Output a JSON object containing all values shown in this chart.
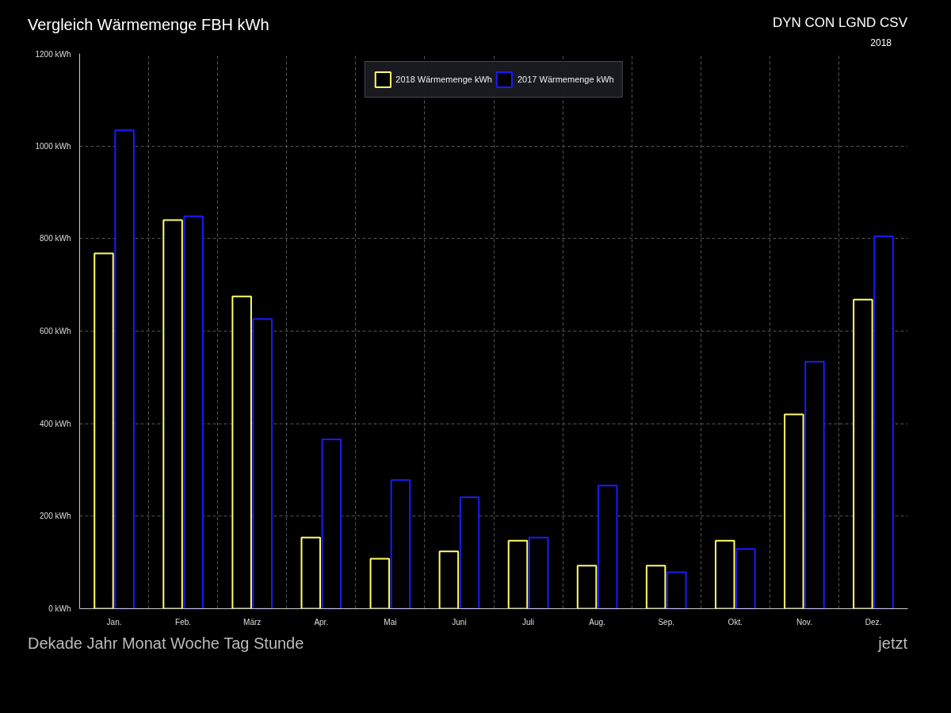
{
  "chart_data": {
    "type": "bar",
    "title": "Vergleich Wärmemenge FBH kWh",
    "annotations": [
      "DYN CON LGND CSV",
      "2018",
      "Dekade Jahr Monat Woche Tag Stunde",
      "jetzt"
    ],
    "categories": [
      "Jan.",
      "Feb.",
      "März",
      "Apr.",
      "Mai",
      "Juni",
      "Juli",
      "Aug.",
      "Sep.",
      "Okt.",
      "Nov.",
      "Dez."
    ],
    "series": [
      {
        "name": "2018 Wärmemenge kWh",
        "color": "#ffff66",
        "values": [
          768,
          840,
          675,
          154,
          108,
          124,
          147,
          93,
          93,
          147,
          420,
          668
        ]
      },
      {
        "name": "2017 Wärmemenge kWh",
        "color": "#1a1aff",
        "values": [
          1034,
          848,
          626,
          366,
          278,
          241,
          154,
          266,
          79,
          129,
          534,
          805
        ]
      }
    ],
    "ylim": [
      0,
      1200
    ],
    "yticks": [
      {
        "value": 0,
        "label": "0 kWh"
      },
      {
        "value": 200,
        "label": "200 kWh"
      },
      {
        "value": 400,
        "label": "400 kWh"
      },
      {
        "value": 600,
        "label": "600 kWh"
      },
      {
        "value": 800,
        "label": "800 kWh"
      },
      {
        "value": 1000,
        "label": "1000 kWh"
      },
      {
        "value": 1200,
        "label": "1200 kWh"
      }
    ],
    "grid": true,
    "legend": "top"
  }
}
